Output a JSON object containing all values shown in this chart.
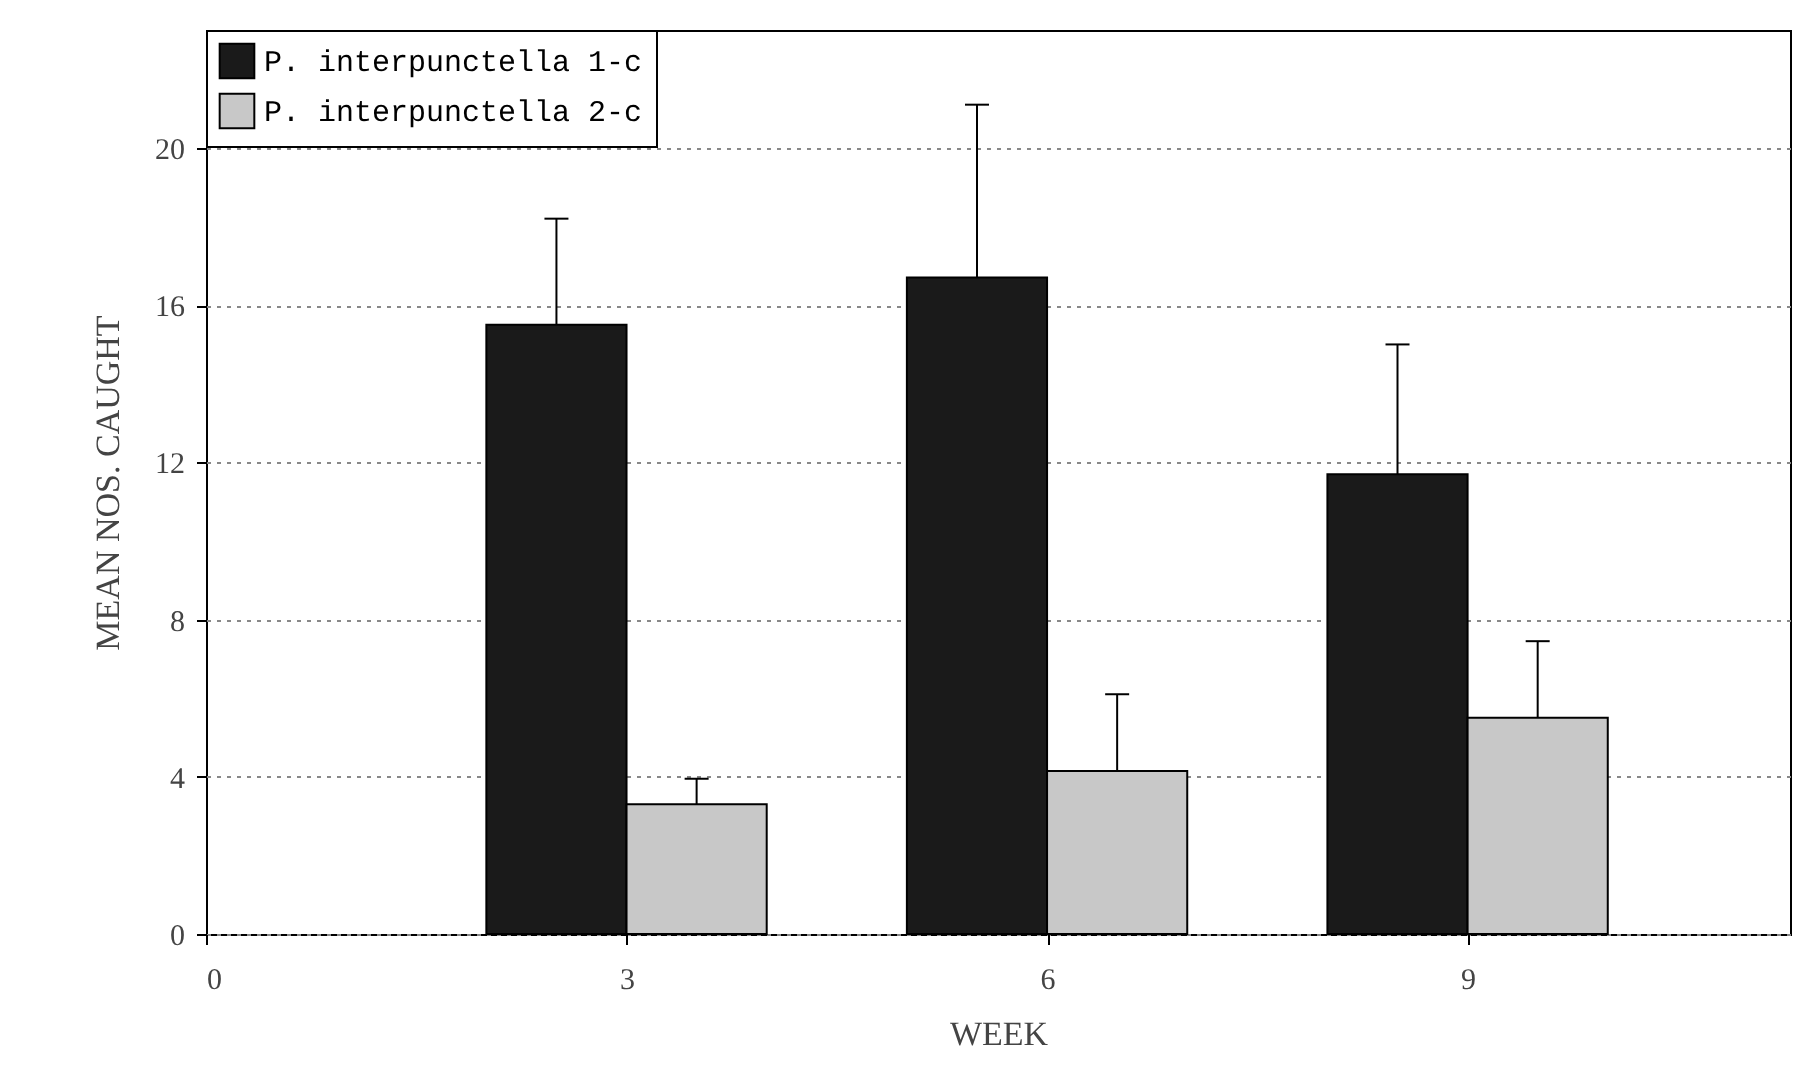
{
  "chart_data": {
    "type": "bar",
    "xlabel": "WEEK",
    "ylabel": "MEAN NOS. CAUGHT",
    "x": [
      3,
      6,
      9
    ],
    "series": [
      {
        "name": "P. interpunctella 1-c",
        "color": "#1a1a1a",
        "values": [
          15.5,
          16.7,
          11.7
        ],
        "errors": [
          [
            15.5,
            18.2
          ],
          [
            16.7,
            21.1
          ],
          [
            11.7,
            15.0
          ]
        ]
      },
      {
        "name": "P. interpunctella 2-c",
        "color": "#c8c8c8",
        "values": [
          3.3,
          4.15,
          5.5
        ],
        "errors": [
          [
            3.3,
            3.95
          ],
          [
            4.15,
            6.1
          ],
          [
            5.5,
            7.45
          ]
        ]
      }
    ],
    "xlim": [
      0,
      11.3
    ],
    "xticks": [
      0,
      3,
      6,
      9
    ],
    "ylim": [
      0,
      23
    ],
    "yticks": [
      0,
      4,
      8,
      12,
      16,
      20
    ],
    "grid": "y",
    "legend": "top left"
  }
}
